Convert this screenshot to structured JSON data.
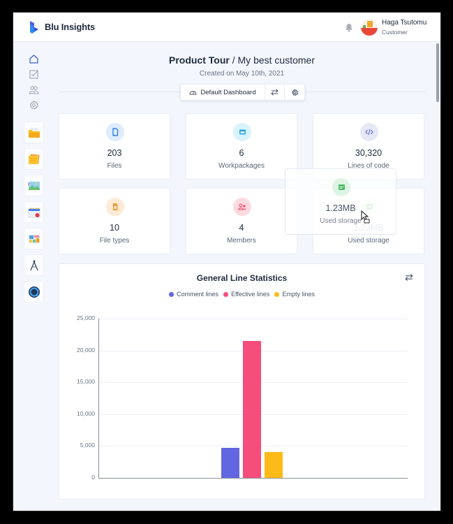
{
  "app": {
    "brand": "Blu Insights",
    "user": {
      "name": "Haga Tsutomu",
      "role": "Customer"
    }
  },
  "sidebar": {
    "nav": [
      {
        "name": "home",
        "icon": "home-icon",
        "active": true
      },
      {
        "name": "tasks",
        "icon": "checkbox-icon"
      },
      {
        "name": "users",
        "icon": "users-icon"
      },
      {
        "name": "settings",
        "icon": "gear-icon"
      }
    ],
    "apps": [
      {
        "name": "codebase",
        "icon": "folder-icon"
      },
      {
        "name": "transformation-center",
        "icon": "sticky-notes-icon"
      },
      {
        "name": "capture",
        "icon": "image-icon"
      },
      {
        "name": "project-management",
        "icon": "calendar-icon"
      },
      {
        "name": "dashboards",
        "icon": "dashboard-tiles-icon"
      },
      {
        "name": "toolbox",
        "icon": "compass-icon"
      },
      {
        "name": "versions",
        "icon": "sync-icon"
      }
    ]
  },
  "header": {
    "project": "Product Tour",
    "separator": " / ",
    "customer": "My best customer",
    "created": "Created on May 10th, 2021",
    "dashboard_button": "Default Dashboard"
  },
  "stats": [
    {
      "value": "203",
      "label": "Files",
      "icon": "file-icon",
      "color": "#2f80ed",
      "bg": "#deecfd"
    },
    {
      "value": "6",
      "label": "Workpackages",
      "icon": "window-icon",
      "color": "#1fa6e0",
      "bg": "#d9f3fd"
    },
    {
      "value": "30,320",
      "label": "Lines of code",
      "icon": "code-icon",
      "color": "#5b63c9",
      "bg": "#e6e9f5"
    },
    {
      "value": "10",
      "label": "File types",
      "icon": "file-type-icon",
      "color": "#f29b38",
      "bg": "#feead5"
    },
    {
      "value": "4",
      "label": "Members",
      "icon": "user-group-icon",
      "color": "#ec4564",
      "bg": "#fddadf"
    },
    {
      "value": "1.23MB",
      "label": "Used storage",
      "icon": "storage-icon",
      "color": "#3cb458",
      "bg": "#dcf5e2"
    }
  ],
  "dragging_card": {
    "value": "1.23MB",
    "label": "Used storage"
  },
  "chart": {
    "title": "General Line Statistics"
  },
  "chart_data": {
    "type": "bar",
    "title": "General Line Statistics",
    "categories": [
      ""
    ],
    "series": [
      {
        "name": "Comment lines",
        "color": "#6366e1",
        "values": [
          4720
        ]
      },
      {
        "name": "Effective lines",
        "color": "#f54d7c",
        "values": [
          21530
        ]
      },
      {
        "name": "Empty lines",
        "color": "#fdbb19",
        "values": [
          4070
        ]
      }
    ],
    "yticks": [
      "0",
      "5,000",
      "10,000",
      "15,000",
      "20,000",
      "25,000"
    ],
    "ylim": [
      0,
      25000
    ],
    "xlabel": "",
    "ylabel": "",
    "grid": true,
    "legend_position": "top"
  }
}
